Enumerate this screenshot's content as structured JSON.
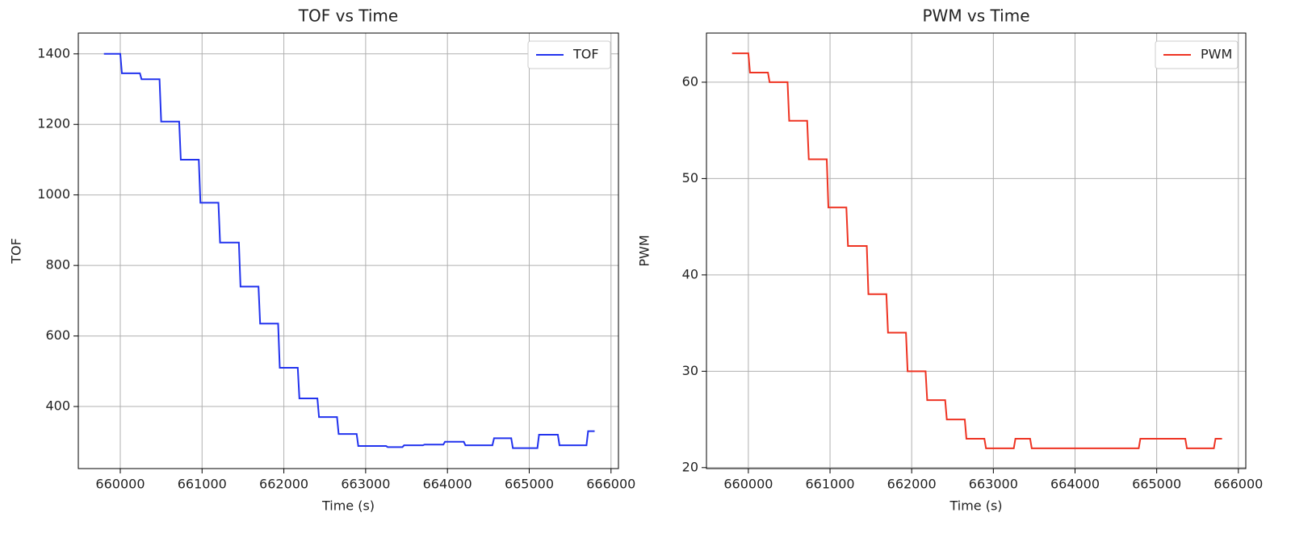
{
  "chart_data": [
    {
      "type": "line",
      "title": "TOF vs Time",
      "xlabel": "Time (s)",
      "ylabel": "TOF",
      "xlim": [
        659487,
        666091
      ],
      "xticks": [
        660000,
        661000,
        662000,
        663000,
        664000,
        665000,
        666000
      ],
      "ylim": [
        224,
        1459
      ],
      "yticks": [
        400,
        600,
        800,
        1000,
        1200,
        1400
      ],
      "grid": true,
      "legend": "upper right",
      "series": [
        {
          "name": "TOF",
          "color": "#2233ee",
          "x": [
            659800,
            660000,
            660020,
            660240,
            660260,
            660480,
            660500,
            660720,
            660740,
            660960,
            660980,
            661200,
            661220,
            661450,
            661470,
            661690,
            661710,
            661930,
            661950,
            662170,
            662190,
            662410,
            662430,
            662650,
            662670,
            662890,
            662910,
            663250,
            663270,
            663450,
            663470,
            663700,
            663720,
            663950,
            663970,
            664200,
            664220,
            664550,
            664570,
            664780,
            664800,
            665100,
            665120,
            665350,
            665370,
            665700,
            665720,
            665800
          ],
          "values": [
            1400,
            1400,
            1345,
            1345,
            1328,
            1328,
            1208,
            1208,
            1100,
            1100,
            978,
            978,
            865,
            865,
            740,
            740,
            635,
            635,
            510,
            510,
            423,
            423,
            370,
            370,
            322,
            322,
            288,
            288,
            285,
            285,
            290,
            290,
            292,
            292,
            300,
            300,
            290,
            290,
            310,
            310,
            282,
            282,
            320,
            320,
            290,
            290,
            330,
            330
          ]
        }
      ]
    },
    {
      "type": "line",
      "title": "PWM vs Time",
      "xlabel": "Time (s)",
      "ylabel": "PWM",
      "xlim": [
        659487,
        666091
      ],
      "xticks": [
        660000,
        661000,
        662000,
        663000,
        664000,
        665000,
        666000
      ],
      "ylim": [
        19.9,
        65.1
      ],
      "yticks": [
        20,
        30,
        40,
        50,
        60
      ],
      "grid": true,
      "legend": "upper right",
      "series": [
        {
          "name": "PWM",
          "color": "#ee3322",
          "x": [
            659800,
            660000,
            660020,
            660240,
            660260,
            660480,
            660500,
            660720,
            660740,
            660960,
            660980,
            661200,
            661220,
            661450,
            661470,
            661690,
            661710,
            661930,
            661950,
            662170,
            662190,
            662410,
            662430,
            662650,
            662670,
            662890,
            662910,
            663250,
            663270,
            663450,
            663470,
            664780,
            664800,
            665350,
            665370,
            665700,
            665720,
            665800
          ],
          "values": [
            63,
            63,
            61,
            61,
            60,
            60,
            56,
            56,
            52,
            52,
            47,
            47,
            43,
            43,
            38,
            38,
            34,
            34,
            30,
            30,
            27,
            27,
            25,
            25,
            23,
            23,
            22,
            22,
            23,
            23,
            22,
            22,
            23,
            23,
            22,
            22,
            23,
            23
          ]
        }
      ]
    }
  ]
}
